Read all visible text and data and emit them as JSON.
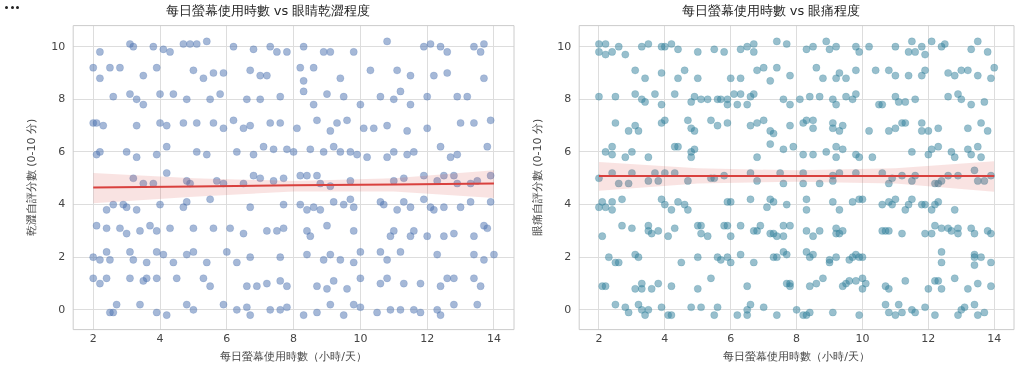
{
  "chart_data": [
    {
      "type": "scatter",
      "title": "每日螢幕使用時數 vs 眼睛乾澀程度",
      "xlabel": "每日螢幕使用時數（小時/天）",
      "ylabel": "乾澀自評分數 (0-10 分)",
      "xlim": [
        1.4,
        14.6
      ],
      "ylim": [
        -0.75,
        10.8
      ],
      "xticks": [
        2,
        4,
        6,
        8,
        10,
        12,
        14
      ],
      "yticks": [
        0,
        2,
        4,
        6,
        8,
        10
      ],
      "grid": true,
      "legend": false,
      "marker": "circle",
      "series": [
        {
          "type": "scatter",
          "color": "#4c72b0",
          "x": [
            2.2,
            3.1,
            3.2,
            3.8,
            4.1,
            4.3,
            4.7,
            4.9,
            5.1,
            5.4,
            6.2,
            6.8,
            7.3,
            7.5,
            7.8,
            8.3,
            8.9,
            9.1,
            9.8,
            10.8,
            11.9,
            12.1,
            12.4,
            12.6,
            13.4,
            13.6,
            13.7,
            2,
            2.2,
            2.5,
            2.8,
            3.5,
            3.9,
            5,
            5.3,
            5.6,
            5.9,
            6.7,
            7,
            7.2,
            8.2,
            8.3,
            8.6,
            9.4,
            10.3,
            11.1,
            11.5,
            12.2,
            12.6,
            13.7,
            2.6,
            3.1,
            3.3,
            3.5,
            4,
            4.4,
            4.8,
            5.5,
            5.8,
            6.6,
            7,
            7.6,
            8.3,
            8.6,
            9,
            9.5,
            10,
            10.6,
            11,
            11.2,
            11.5,
            12,
            12.9,
            13.2,
            2,
            2.1,
            2.3,
            3.3,
            4,
            4.2,
            4.7,
            5.1,
            5.6,
            5.9,
            6.2,
            6.5,
            6.7,
            7.3,
            7.6,
            8.1,
            8.7,
            9.1,
            9.3,
            9.6,
            10.1,
            10.4,
            10.8,
            11.4,
            12,
            13,
            13.4,
            13.9,
            2.1,
            2.2,
            3,
            3.3,
            3.9,
            4.2,
            5.1,
            5.4,
            6.3,
            6.8,
            7.1,
            7.4,
            7.8,
            8,
            8.5,
            8.9,
            9.2,
            9.4,
            9.7,
            9.9,
            10.2,
            10.8,
            11,
            11.4,
            11.6,
            12.4,
            12.7,
            12.9,
            13.8,
            3.2,
            3.5,
            3.8,
            4.2,
            4.8,
            4.9,
            5.7,
            5.9,
            6.5,
            6.8,
            7,
            7.4,
            7.7,
            8.2,
            8.4,
            8.7,
            8.8,
            9.1,
            9.7,
            11,
            11.3,
            11.9,
            12.3,
            12.5,
            12.8,
            12.9,
            13.3,
            13.5,
            13.9,
            2.4,
            2.6,
            2.9,
            3,
            3.3,
            4,
            4.7,
            4.8,
            5.5,
            6.7,
            7.7,
            8.2,
            8.4,
            8.6,
            8.8,
            9.2,
            9.5,
            9.7,
            9.8,
            10.6,
            10.7,
            11.1,
            11.3,
            11.5,
            11.9,
            12.1,
            12.2,
            12.5,
            13,
            13.3,
            13.9,
            2.1,
            2.4,
            2.8,
            3,
            3.4,
            3.7,
            3.9,
            4.3,
            5,
            5.6,
            6.1,
            6.5,
            7.2,
            7.5,
            7.7,
            8.4,
            8.5,
            9,
            9.8,
            10.9,
            11,
            11.5,
            11.6,
            12,
            12.5,
            12.8,
            13.4,
            13.7,
            13.8,
            2,
            2.2,
            2.4,
            2.5,
            3.1,
            3.2,
            3.6,
            3.9,
            4.1,
            4.4,
            4.8,
            5,
            5.4,
            6,
            6.3,
            6.7,
            7.6,
            8.4,
            8.9,
            9.1,
            9.4,
            9.8,
            10,
            10.6,
            10.8,
            11.2,
            12.3,
            13.4,
            13.7,
            14,
            2,
            2.2,
            2.4,
            3.1,
            3.5,
            3.6,
            3.9,
            4.5,
            5.3,
            5.5,
            6.6,
            6.9,
            7.2,
            7.6,
            7.8,
            8.7,
            9,
            9.2,
            9.6,
            10,
            10.6,
            10.8,
            11.3,
            11.8,
            12.4,
            12.6,
            12.8,
            13.4,
            13.6,
            2.5,
            2.6,
            2.7,
            3.4,
            3.9,
            4.2,
            4.8,
            5,
            5.9,
            6.3,
            6.6,
            6.7,
            7.3,
            7.6,
            7.8,
            8.3,
            8.7,
            9.1,
            9.5,
            9.8,
            10,
            10.5,
            10.9,
            11.2,
            11.6,
            11.8,
            12.3,
            12.4,
            12.8,
            13.5
          ],
          "values": [
            9.8,
            10.1,
            10,
            10,
            9.9,
            9.8,
            10.1,
            10.1,
            10.1,
            10.2,
            10,
            9.9,
            10,
            9.8,
            9.8,
            10,
            9.8,
            9.8,
            9.8,
            10.2,
            10,
            10.1,
            10,
            9.8,
            10,
            9.8,
            10.1,
            9.2,
            8.8,
            9.2,
            9.2,
            8.9,
            9.2,
            9.1,
            8.8,
            9,
            9,
            9.1,
            8.9,
            8.9,
            9.2,
            8.7,
            9.2,
            8.8,
            9.1,
            9.1,
            8.9,
            8.9,
            9,
            8.8,
            8.1,
            8.2,
            8,
            7.8,
            8.2,
            8.2,
            8,
            8,
            8.2,
            8,
            8,
            8.1,
            8.3,
            7.8,
            8.2,
            8.1,
            7.8,
            8.1,
            8,
            8.3,
            7.8,
            8.1,
            8.1,
            8.1,
            7.1,
            7.1,
            7,
            7,
            7.1,
            7,
            7.1,
            7.1,
            7.1,
            6.9,
            7.2,
            6.9,
            7,
            7.1,
            7.1,
            6.9,
            7.2,
            6.8,
            7.1,
            7.2,
            6.9,
            6.9,
            7,
            6.8,
            6.9,
            7.1,
            7.1,
            7.2,
            5.9,
            6,
            6,
            5.8,
            5.9,
            6.2,
            6,
            5.9,
            6,
            5.9,
            6.2,
            6.1,
            6.1,
            6,
            6.1,
            6,
            6.2,
            6,
            6,
            5.9,
            5.8,
            5.8,
            6,
            5.9,
            6,
            6.2,
            5.8,
            5.9,
            6.2,
            5,
            4.8,
            4.8,
            5.2,
            4.9,
            4.8,
            4.9,
            4.8,
            4.8,
            5.1,
            5,
            4.9,
            5,
            5.1,
            5.1,
            5.1,
            4.8,
            4.7,
            4.9,
            4.9,
            5,
            5.1,
            4.9,
            5.1,
            5.1,
            4.8,
            4.8,
            4.9,
            5.1,
            3.8,
            4,
            4,
            3.9,
            3.8,
            4,
            3.9,
            4.1,
            4.2,
            3.9,
            4,
            4,
            3.8,
            3.9,
            3.8,
            4.1,
            4,
            4.2,
            3.9,
            4.1,
            4,
            3.8,
            4.1,
            3.9,
            4.2,
            3.9,
            3.8,
            3.9,
            3.9,
            4.1,
            4.1,
            3.2,
            3.1,
            3.1,
            2.9,
            3,
            3.2,
            3,
            3.1,
            3.1,
            3.1,
            3.1,
            2.9,
            3,
            3,
            3.1,
            3,
            2.8,
            3.2,
            3,
            2.8,
            3,
            2.8,
            3,
            2.8,
            2.8,
            2.9,
            2.8,
            3.2,
            3.1,
            2,
            1.9,
            2.2,
            1.9,
            2.2,
            1.9,
            1.8,
            2.2,
            2.1,
            1.8,
            2.1,
            2.2,
            1.8,
            2.2,
            1.8,
            2,
            2,
            2.1,
            1.9,
            2.1,
            1.9,
            1.8,
            2.2,
            2.2,
            1.9,
            2.2,
            2.1,
            2.1,
            1.9,
            2.1,
            1.2,
            1,
            1.2,
            1.2,
            1.1,
            1.2,
            1.2,
            1.2,
            1.2,
            0.9,
            0.9,
            0.9,
            1,
            1.1,
            0.9,
            0.9,
            0.8,
            1.1,
            0.8,
            1.2,
            1,
            1.2,
            1,
            1,
            0.9,
            1.2,
            1.2,
            1.2,
            0.9,
            -0.1,
            -0.1,
            0.2,
            0.2,
            -0.1,
            -0.2,
            0.2,
            0,
            0.2,
            0,
            0.1,
            -0.2,
            0,
            0,
            0.1,
            -0.2,
            -0.1,
            0.2,
            -0.2,
            0.2,
            0.1,
            -0.1,
            0,
            0,
            0,
            -0.1,
            0,
            -0.2,
            0.2,
            0.2
          ]
        },
        {
          "type": "line",
          "marker": "none",
          "color": "#d9413e",
          "x": [
            2,
            5,
            8,
            11,
            14
          ],
          "values": [
            4.65,
            4.69,
            4.73,
            4.76,
            4.8
          ],
          "lower": [
            4.05,
            4.3,
            4.5,
            4.5,
            4.25
          ],
          "upper": [
            5.2,
            5.0,
            4.9,
            5.0,
            5.3
          ]
        }
      ]
    },
    {
      "type": "scatter",
      "title": "每日螢幕使用時數 vs 眼痛程度",
      "xlabel": "每日螢幕使用時數（小時/天）",
      "ylabel": "眼痛自評分數 (0-10 分)",
      "xlim": [
        1.4,
        14.6
      ],
      "ylim": [
        -0.75,
        10.8
      ],
      "xticks": [
        2,
        4,
        6,
        8,
        10,
        12,
        14
      ],
      "yticks": [
        0,
        2,
        4,
        6,
        8,
        10
      ],
      "grid": true,
      "legend": false,
      "marker": "circle",
      "series": [
        {
          "type": "scatter",
          "color": "#31809c",
          "x": [
            2,
            2,
            2.2,
            2.2,
            2.4,
            2.6,
            2.8,
            3.3,
            3.5,
            3.9,
            4,
            4.2,
            4.4,
            5,
            5.5,
            5.8,
            6.3,
            6.5,
            6.7,
            6.7,
            7.4,
            7.7,
            8.3,
            8.5,
            8.9,
            9,
            9.2,
            9.8,
            9.9,
            10.2,
            11,
            11.4,
            11.5,
            11.6,
            11.8,
            11.9,
            12.1,
            12.4,
            12.5,
            13.3,
            13.5,
            13.8,
            3.1,
            3.4,
            3.9,
            4.4,
            4.6,
            5,
            6,
            6.3,
            6.8,
            7,
            7.4,
            7.2,
            7.8,
            8.6,
            8.8,
            9.2,
            9.3,
            9.5,
            9.8,
            10.4,
            10.8,
            11,
            11.4,
            11.8,
            11.9,
            12.6,
            12.8,
            13,
            13.2,
            13.5,
            13.9,
            14,
            2,
            2.5,
            3.1,
            3.3,
            3.4,
            3.7,
            3.9,
            4.3,
            4.8,
            4.9,
            5.1,
            5.3,
            5.6,
            5.7,
            5.9,
            5.9,
            6.1,
            6.2,
            6.3,
            6.5,
            6.6,
            6.7,
            7.6,
            7.8,
            8.1,
            8.4,
            8.7,
            9.1,
            9.2,
            9.5,
            9.7,
            9.8,
            10.5,
            10.6,
            11,
            11.1,
            11.3,
            11.6,
            12.6,
            12.9,
            13,
            13.3,
            13.7,
            2.5,
            2.9,
            3.1,
            3.2,
            3.9,
            4,
            4.7,
            4.8,
            4.9,
            5.4,
            5.6,
            5.9,
            6.6,
            6.8,
            7,
            7.2,
            7.3,
            7.8,
            8.2,
            8.3,
            8.5,
            8.5,
            9.1,
            9.1,
            9.3,
            9.4,
            10.2,
            10.8,
            11,
            11.2,
            11.3,
            11.8,
            11.8,
            12,
            12.3,
            13.2,
            13.6,
            13.8,
            2.2,
            2.4,
            2.4,
            2.8,
            3,
            3.5,
            4.3,
            4.4,
            4.8,
            4.8,
            4.9,
            6.8,
            7.2,
            7.6,
            7.9,
            8.2,
            8.5,
            8.9,
            9.2,
            9.2,
            9.4,
            9.8,
            9.9,
            10.3,
            11.5,
            12,
            12.1,
            12.3,
            12.7,
            12.8,
            13.2,
            13.3,
            13.5,
            13.6,
            2,
            2.4,
            2.6,
            2.9,
            3,
            3.5,
            3.7,
            3.8,
            4,
            4.3,
            4.7,
            5.4,
            5.5,
            5.8,
            6.6,
            6.8,
            7.5,
            7.6,
            8.2,
            8.2,
            8.7,
            9.1,
            9.1,
            9.3,
            9.8,
            10.6,
            10.8,
            10.9,
            11.2,
            11.5,
            11.6,
            12.2,
            12.3,
            12.4,
            12.6,
            12.9,
            13.4,
            13.5,
            13.7,
            13.9,
            2,
            2.1,
            2.2,
            2.4,
            2.4,
            2.7,
            3.9,
            4,
            4.2,
            4.4,
            4.6,
            4.7,
            5.9,
            6,
            6.6,
            7.1,
            7.2,
            7.3,
            7.7,
            8.3,
            8.3,
            9.3,
            9.1,
            9.7,
            9.9,
            10,
            10.6,
            10.8,
            10.9,
            11,
            11.3,
            11.4,
            11.5,
            11.8,
            11.9,
            12.1,
            12.2,
            12.3,
            12.8,
            2.1,
            2.7,
            3,
            3.5,
            3.5,
            3.6,
            3.8,
            4.1,
            4.3,
            5,
            5.1,
            5.1,
            5.3,
            5.8,
            5.9,
            6,
            6.3,
            6.7,
            6.8,
            6.9,
            7.2,
            7.3,
            7.4,
            7.6,
            7.6,
            7.8,
            8.3,
            8.5,
            8.7,
            9.2,
            9.2,
            9.3,
            9.4,
            10.6,
            10.7,
            10.8,
            11.2,
            11.9,
            12.1,
            12.2,
            12.4,
            12.6,
            12.7,
            12.9,
            12.9,
            13.3,
            13.4,
            13.8,
            13.9,
            2.3,
            2.5,
            2.6,
            3.1,
            3.2,
            4.5,
            5,
            5.6,
            5.7,
            5.9,
            6,
            6.3,
            6.7,
            7.3,
            7.4,
            7.6,
            7.7,
            8.3,
            8.4,
            8.5,
            9,
            9,
            9.2,
            9.6,
            9.7,
            9.8,
            9.9,
            10,
            12.4,
            12.4,
            13.4,
            13.4,
            13.4,
            13.6,
            13.9,
            2.1,
            2.2,
            3.1,
            3.3,
            3.3,
            3.6,
            3.8,
            4.2,
            5,
            5.4,
            6.5,
            7.7,
            7.8,
            7.8,
            8.4,
            8.6,
            8.8,
            9.4,
            9.5,
            9.6,
            9.8,
            10,
            10,
            10.1,
            10.7,
            10.8,
            11.3,
            12,
            12.2,
            12.3,
            12.4,
            12.8,
            13.2,
            13.5,
            13.9,
            2.5,
            2.8,
            2.9,
            3.2,
            3.3,
            3.4,
            3.5,
            3.9,
            4.1,
            4.2,
            4.8,
            5.1,
            5.5,
            5.6,
            6.2,
            6.5,
            6.5,
            6.6,
            7,
            7.4,
            8,
            8.2,
            8.3,
            8.4,
            9.1,
            9.9,
            10.7,
            10.8,
            11,
            11.1,
            11.2,
            11.5,
            11.6,
            11.9,
            12.2,
            12.9,
            13,
            13.1,
            13.4,
            13.5,
            13.7
          ],
          "values": [
            10.1,
            9.8,
            10.1,
            9.7,
            9.8,
            10,
            9.7,
            10,
            10.1,
            10,
            10,
            10.1,
            9.9,
            9.8,
            9.9,
            9.8,
            9.9,
            10,
            10.1,
            9.8,
            10.2,
            10.1,
            9.9,
            10,
            10.2,
            9.9,
            10,
            10,
            9.8,
            10,
            10,
            9.8,
            10.2,
            9.8,
            10,
            9.7,
            10.2,
            10,
            10.1,
            9.9,
            10.2,
            9.8,
            9.1,
            8.8,
            9,
            8.8,
            9.1,
            8.8,
            8.8,
            8.8,
            9.1,
            9.2,
            9.2,
            8.7,
            8.9,
            9.2,
            8.8,
            8.8,
            9,
            8.8,
            9.1,
            9.1,
            9.1,
            8.9,
            8.9,
            8.9,
            9.1,
            9,
            8.9,
            9.1,
            9.1,
            8.9,
            8.8,
            9.2,
            8.1,
            8.1,
            8.2,
            8,
            7.9,
            8.2,
            7.8,
            8.2,
            7.9,
            8.1,
            8,
            8,
            8,
            8,
            8,
            7.8,
            8.2,
            7.8,
            8.2,
            7.8,
            8.1,
            8.2,
            8,
            7.8,
            8,
            8.1,
            8.1,
            8,
            7.8,
            8.1,
            8,
            8.2,
            7.8,
            7.8,
            8.1,
            7.9,
            7.9,
            8,
            8.1,
            8.2,
            8,
            7.8,
            7.9,
            7.1,
            6.8,
            7,
            6.8,
            7.1,
            7.2,
            7.2,
            6.9,
            6.8,
            7.2,
            7,
            7.1,
            7,
            7.1,
            7.2,
            6.8,
            6.7,
            7,
            7.1,
            7.2,
            7.2,
            6.9,
            7.1,
            6.9,
            6.8,
            7,
            6.8,
            6.8,
            6.9,
            7.1,
            7.1,
            7.1,
            6.8,
            6.8,
            6.9,
            6.9,
            7.1,
            6.8,
            6,
            6.2,
            5.9,
            5.8,
            6,
            5.8,
            6.2,
            6.2,
            6,
            5.8,
            6.1,
            5.8,
            6.3,
            6.1,
            6.2,
            5.9,
            5.9,
            6,
            6.2,
            5.8,
            6.1,
            5.9,
            5.8,
            5.8,
            6,
            5.9,
            6.1,
            6.2,
            6,
            5.8,
            6.1,
            5.9,
            6.2,
            5.8,
            5,
            5.2,
            4.8,
            4.8,
            5.2,
            4.9,
            5.2,
            4.9,
            5.2,
            5.2,
            4.9,
            5,
            5,
            5.1,
            5.2,
            4.9,
            5.2,
            4.8,
            5.2,
            4.8,
            4.8,
            5.1,
            4.9,
            5.2,
            5.2,
            5.2,
            4.8,
            5,
            5.1,
            4.9,
            5.1,
            4.8,
            4.8,
            4.9,
            5.1,
            5.1,
            5.3,
            4.9,
            4.9,
            5.1,
            3.9,
            4.1,
            3.9,
            4.1,
            3.8,
            4.2,
            4.2,
            4,
            3.8,
            4.1,
            4,
            3.8,
            4.1,
            4.1,
            4.2,
            3.9,
            4.2,
            4.1,
            4,
            4.2,
            3.8,
            3.8,
            4.1,
            4.1,
            4.2,
            4.2,
            4,
            4.1,
            4,
            4.2,
            3.8,
            4,
            4.2,
            4,
            4,
            3.8,
            4,
            4.1,
            3.8,
            2.8,
            3.2,
            3.1,
            3.2,
            3,
            2.9,
            3,
            2.8,
            3.1,
            3.2,
            3.2,
            2.9,
            2.8,
            3.2,
            3.2,
            2.8,
            3.2,
            3,
            3,
            3.2,
            2.9,
            2.9,
            2.8,
            2.8,
            3.2,
            3.2,
            3,
            2.8,
            3,
            3.1,
            2.9,
            2.9,
            3,
            3,
            3,
            3,
            2.9,
            2.9,
            2.9,
            3.2,
            3.1,
            3.1,
            3,
            3.1,
            2.9,
            3.1,
            2.9,
            3,
            2.9,
            2,
            1.8,
            1.8,
            2.1,
            2,
            1.8,
            2,
            2,
            1.9,
            2,
            1.8,
            2.1,
            1.8,
            2,
            2,
            2.2,
            2.1,
            2.2,
            2,
            2.1,
            1.9,
            1.8,
            2,
            1.9,
            2,
            2.1,
            2,
            2,
            2.2,
            1.8,
            2.1,
            2,
            1.7,
            2,
            1.8,
            0.9,
            0.9,
            0.8,
            0.8,
            1,
            0.8,
            1,
            0.9,
            0.8,
            1.2,
            0.9,
            1,
            1,
            0.9,
            0.9,
            1,
            1.2,
            0.9,
            1,
            1.1,
            1.1,
            1.2,
            0.8,
            1,
            0.9,
            0.8,
            1.1,
            0.8,
            1.1,
            1.1,
            0.8,
            1.2,
            0.8,
            1,
            0.9,
            0.2,
            0.1,
            -0.1,
            0.2,
            0,
            -0.2,
            0,
            0.1,
            -0.2,
            -0.2,
            0.1,
            0.1,
            -0.2,
            0.1,
            -0.2,
            0,
            -0.2,
            0.2,
            0.1,
            -0.2,
            0,
            -0.2,
            -0.2,
            -0.1,
            -0.1,
            -0.2,
            0.2,
            -0.1,
            -0.2,
            0.2,
            -0.1,
            0,
            -0.1,
            0.1,
            -0.2,
            -0.2,
            0,
            0.1,
            0.2,
            -0.2,
            -0.1
          ]
        },
        {
          "type": "line",
          "marker": "none",
          "color": "#d9413e",
          "x": [
            2,
            5,
            8,
            11,
            14
          ],
          "values": [
            5.09,
            5.09,
            5.09,
            5.09,
            5.09
          ],
          "lower": [
            4.53,
            4.8,
            4.87,
            4.8,
            4.49
          ],
          "upper": [
            5.62,
            5.38,
            5.3,
            5.38,
            5.65
          ]
        }
      ]
    }
  ]
}
